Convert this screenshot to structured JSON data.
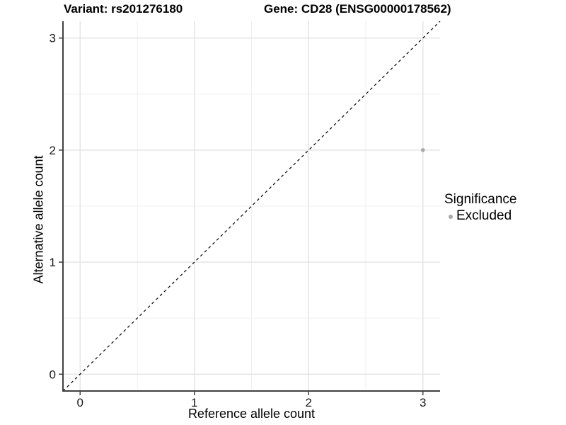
{
  "header": {
    "variant_title": "Variant: rs201276180",
    "gene_title": "Gene: CD28 (ENSG00000178562)"
  },
  "legend": {
    "title": "Significance",
    "items": [
      {
        "label": "Excluded",
        "color": "#a8a8a8",
        "marker": "circle"
      }
    ]
  },
  "colors": {
    "background": "#ffffff",
    "grid_major": "#e3e3e3",
    "grid_minor": "#efefef",
    "axis_line": "#404040",
    "tick_text": "#1a1a1a",
    "point": "#a8a8a8",
    "reference_line": "#000000"
  },
  "chart_data": {
    "type": "scatter",
    "titles": {
      "left": "Variant: rs201276180",
      "right": "Gene: CD28 (ENSG00000178562)"
    },
    "xlabel": "Reference allele count",
    "ylabel": "Alternative allele count",
    "xlim": [
      -0.15,
      3.15
    ],
    "ylim": [
      -0.15,
      3.15
    ],
    "x_ticks": [
      0,
      1,
      2,
      3
    ],
    "y_ticks": [
      0,
      1,
      2,
      3
    ],
    "x_minor_ticks": [
      0.5,
      1.5,
      2.5
    ],
    "y_minor_ticks": [
      0.5,
      1.5,
      2.5
    ],
    "grid": "major and minor, light gray on white",
    "legend_position": "right",
    "reference_line": {
      "slope": 1,
      "intercept": 0,
      "style": "dashed",
      "color": "#000000"
    },
    "series": [
      {
        "name": "Excluded",
        "color": "#a8a8a8",
        "points": [
          {
            "x": 3,
            "y": 2
          }
        ]
      }
    ]
  }
}
